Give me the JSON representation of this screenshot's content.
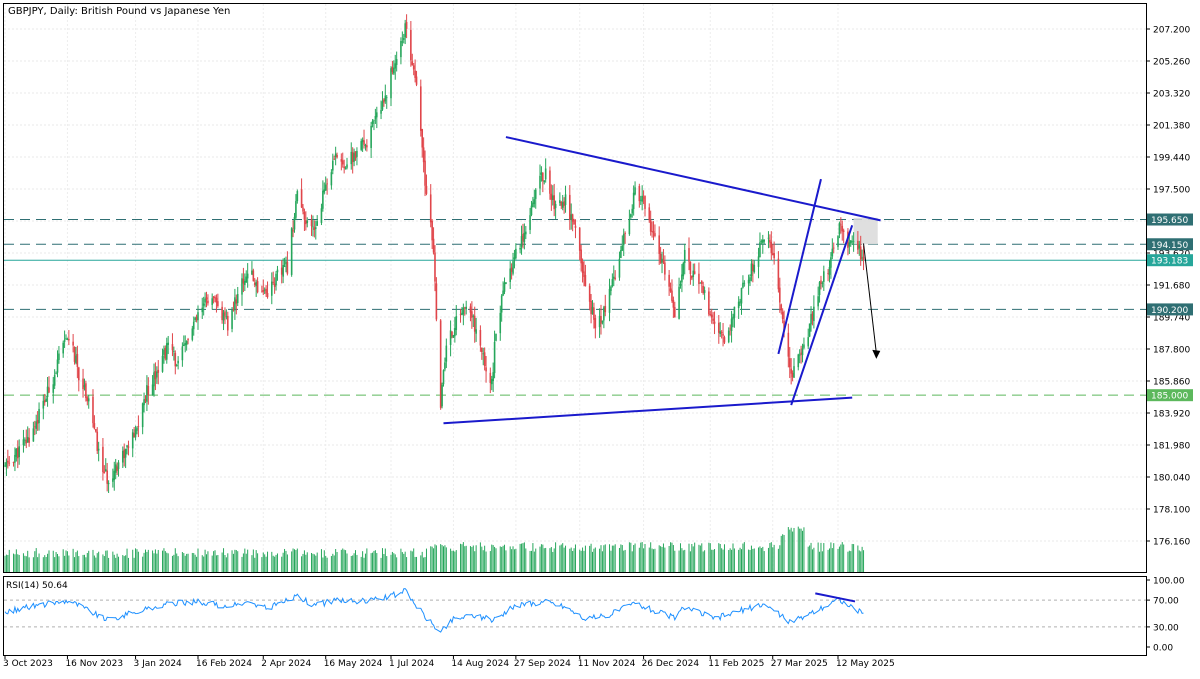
{
  "chart_data": {
    "type": "candlestick",
    "title": "GBPJPY, Daily:  British Pound vs Japanese Yen",
    "symbol": "GBPJPY",
    "timeframe": "Daily",
    "ylim": [
      174.2,
      209.1
    ],
    "y_ticks": [
      "207.200",
      "205.260",
      "203.320",
      "201.380",
      "199.440",
      "197.500",
      "195.560",
      "193.620",
      "191.680",
      "189.740",
      "187.800",
      "185.860",
      "183.920",
      "181.980",
      "180.040",
      "178.100",
      "176.160"
    ],
    "x_ticks": [
      {
        "label": "3 Oct 2023",
        "date": "2023-10-03"
      },
      {
        "label": "16 Nov 2023",
        "date": "2023-11-16"
      },
      {
        "label": "3 Jan 2024",
        "date": "2024-01-03"
      },
      {
        "label": "16 Feb 2024",
        "date": "2024-02-16"
      },
      {
        "label": "2 Apr 2024",
        "date": "2024-04-02"
      },
      {
        "label": "16 May 2024",
        "date": "2024-05-16"
      },
      {
        "label": "1 Jul 2024",
        "date": "2024-07-01"
      },
      {
        "label": "14 Aug 2024",
        "date": "2024-08-14"
      },
      {
        "label": "27 Sep 2024",
        "date": "2024-09-27"
      },
      {
        "label": "11 Nov 2024",
        "date": "2024-11-11"
      },
      {
        "label": "26 Dec 2024",
        "date": "2024-12-26"
      },
      {
        "label": "11 Feb 2025",
        "date": "2025-02-11"
      },
      {
        "label": "27 Mar 2025",
        "date": "2025-03-27"
      },
      {
        "label": "12 May 2025",
        "date": "2025-05-12"
      }
    ],
    "close_path": [
      [
        "2023-10-03",
        180.6
      ],
      [
        "2023-10-20",
        182.4
      ],
      [
        "2023-11-03",
        185.3
      ],
      [
        "2023-11-12",
        187.7
      ],
      [
        "2023-11-17",
        188.6
      ],
      [
        "2023-11-25",
        186.0
      ],
      [
        "2023-12-01",
        184.8
      ],
      [
        "2023-12-08",
        181.4
      ],
      [
        "2023-12-14",
        179.8
      ],
      [
        "2023-12-22",
        181.0
      ],
      [
        "2024-01-03",
        182.6
      ],
      [
        "2024-01-10",
        185.0
      ],
      [
        "2024-01-18",
        186.6
      ],
      [
        "2024-01-26",
        188.0
      ],
      [
        "2024-02-02",
        186.8
      ],
      [
        "2024-02-09",
        188.5
      ],
      [
        "2024-02-16",
        189.7
      ],
      [
        "2024-02-23",
        190.9
      ],
      [
        "2024-03-01",
        190.3
      ],
      [
        "2024-03-08",
        189.2
      ],
      [
        "2024-03-15",
        191.2
      ],
      [
        "2024-03-22",
        192.5
      ],
      [
        "2024-03-29",
        191.6
      ],
      [
        "2024-04-05",
        191.3
      ],
      [
        "2024-04-12",
        192.2
      ],
      [
        "2024-04-19",
        192.8
      ],
      [
        "2024-04-26",
        197.3
      ],
      [
        "2024-05-01",
        195.4
      ],
      [
        "2024-05-08",
        195.0
      ],
      [
        "2024-05-16",
        197.8
      ],
      [
        "2024-05-24",
        199.5
      ],
      [
        "2024-05-31",
        199.0
      ],
      [
        "2024-06-07",
        199.7
      ],
      [
        "2024-06-14",
        200.4
      ],
      [
        "2024-06-21",
        201.8
      ],
      [
        "2024-06-28",
        203.5
      ],
      [
        "2024-07-04",
        205.3
      ],
      [
        "2024-07-11",
        207.2
      ],
      [
        "2024-07-18",
        204.4
      ],
      [
        "2024-07-25",
        198.0
      ],
      [
        "2024-07-31",
        193.6
      ],
      [
        "2024-08-05",
        184.5
      ],
      [
        "2024-08-09",
        187.9
      ],
      [
        "2024-08-14",
        189.0
      ],
      [
        "2024-08-21",
        190.4
      ],
      [
        "2024-08-28",
        189.5
      ],
      [
        "2024-09-04",
        187.2
      ],
      [
        "2024-09-10",
        185.7
      ],
      [
        "2024-09-13",
        188.9
      ],
      [
        "2024-09-20",
        191.9
      ],
      [
        "2024-09-27",
        193.7
      ],
      [
        "2024-10-04",
        195.2
      ],
      [
        "2024-10-11",
        197.6
      ],
      [
        "2024-10-18",
        198.5
      ],
      [
        "2024-10-25",
        196.3
      ],
      [
        "2024-11-01",
        196.9
      ],
      [
        "2024-11-08",
        194.8
      ],
      [
        "2024-11-15",
        191.5
      ],
      [
        "2024-11-22",
        189.3
      ],
      [
        "2024-11-29",
        190.1
      ],
      [
        "2024-12-06",
        192.5
      ],
      [
        "2024-12-13",
        195.2
      ],
      [
        "2024-12-20",
        197.3
      ],
      [
        "2024-12-27",
        196.4
      ],
      [
        "2025-01-03",
        194.5
      ],
      [
        "2025-01-10",
        192.3
      ],
      [
        "2025-01-17",
        190.0
      ],
      [
        "2025-01-24",
        193.8
      ],
      [
        "2025-01-31",
        192.0
      ],
      [
        "2025-02-07",
        191.1
      ],
      [
        "2025-02-14",
        188.9
      ],
      [
        "2025-02-21",
        188.3
      ],
      [
        "2025-02-28",
        190.2
      ],
      [
        "2025-03-07",
        191.8
      ],
      [
        "2025-03-14",
        193.0
      ],
      [
        "2025-03-21",
        194.7
      ],
      [
        "2025-03-28",
        193.3
      ],
      [
        "2025-04-04",
        189.0
      ],
      [
        "2025-04-09",
        186.0
      ],
      [
        "2025-04-15",
        187.4
      ],
      [
        "2025-04-22",
        189.2
      ],
      [
        "2025-04-29",
        191.6
      ],
      [
        "2025-05-06",
        192.8
      ],
      [
        "2025-05-13",
        195.2
      ],
      [
        "2025-05-20",
        194.0
      ],
      [
        "2025-05-26",
        193.8
      ],
      [
        "2025-05-30",
        193.2
      ]
    ],
    "volume_range": [
      0,
      1
    ],
    "horizontal_levels": [
      {
        "value": 195.65,
        "label": "195.650",
        "style": "dashed",
        "color": "#2f6f73"
      },
      {
        "value": 194.15,
        "label": "194.150",
        "style": "dashed",
        "color": "#2f6f73"
      },
      {
        "value": 193.183,
        "label": "193.183",
        "style": "solid",
        "color": "#26a69a"
      },
      {
        "value": 190.2,
        "label": "190.200",
        "style": "dashed",
        "color": "#2f6f73"
      },
      {
        "value": 185.0,
        "label": "185.000",
        "style": "dashed",
        "color": "#5cb85c"
      }
    ],
    "colors": {
      "bull": "#26a65b",
      "bear": "#e0454a",
      "trendline": "#1a1acc",
      "level": "#2f6f73",
      "current": "#26a69a",
      "support": "#5cb85c",
      "rsi": "#1e90ff",
      "box": "#d9d9d9"
    },
    "trendlines": [
      {
        "name": "upper",
        "points": [
          [
            "2024-09-20",
            200.65
          ],
          [
            "2025-06-11",
            195.6
          ]
        ]
      },
      {
        "name": "lower",
        "points": [
          [
            "2024-08-07",
            183.3
          ],
          [
            "2025-05-22",
            184.85
          ]
        ]
      },
      {
        "name": "channel-lower",
        "points": [
          [
            "2025-04-09",
            184.4
          ],
          [
            "2025-05-22",
            195.3
          ]
        ]
      },
      {
        "name": "channel-upper",
        "points": [
          [
            "2025-03-31",
            187.5
          ],
          [
            "2025-04-30",
            198.1
          ]
        ]
      }
    ],
    "zone": {
      "from": "2025-05-23",
      "to": "2025-06-09",
      "low": 194.15,
      "high": 195.75
    },
    "forecast_arrow": {
      "from": [
        "2025-05-30",
        194.2
      ],
      "to": [
        "2025-06-08",
        187.2
      ]
    },
    "rsi": {
      "label": "RSI(14) 50.64",
      "ylim": [
        0,
        100
      ],
      "ticks": [
        "100.00",
        "70.00",
        "30.00",
        "0.00"
      ],
      "levels": [
        70,
        30
      ],
      "path": [
        [
          "2023-10-03",
          52
        ],
        [
          "2023-10-20",
          60
        ],
        [
          "2023-11-03",
          65
        ],
        [
          "2023-11-17",
          70
        ],
        [
          "2023-12-01",
          55
        ],
        [
          "2023-12-14",
          40
        ],
        [
          "2024-01-03",
          52
        ],
        [
          "2024-01-26",
          64
        ],
        [
          "2024-02-16",
          68
        ],
        [
          "2024-03-08",
          60
        ],
        [
          "2024-03-22",
          66
        ],
        [
          "2024-04-05",
          58
        ],
        [
          "2024-04-26",
          76
        ],
        [
          "2024-05-08",
          62
        ],
        [
          "2024-05-24",
          70
        ],
        [
          "2024-06-14",
          68
        ],
        [
          "2024-07-04",
          78
        ],
        [
          "2024-07-11",
          84
        ],
        [
          "2024-07-25",
          46
        ],
        [
          "2024-08-05",
          22
        ],
        [
          "2024-08-14",
          42
        ],
        [
          "2024-08-28",
          48
        ],
        [
          "2024-09-10",
          40
        ],
        [
          "2024-09-27",
          62
        ],
        [
          "2024-10-18",
          68
        ],
        [
          "2024-11-01",
          60
        ],
        [
          "2024-11-15",
          42
        ],
        [
          "2024-11-29",
          46
        ],
        [
          "2024-12-20",
          66
        ],
        [
          "2025-01-03",
          54
        ],
        [
          "2025-01-17",
          44
        ],
        [
          "2025-01-24",
          60
        ],
        [
          "2025-02-14",
          42
        ],
        [
          "2025-03-07",
          56
        ],
        [
          "2025-03-21",
          64
        ],
        [
          "2025-04-04",
          44
        ],
        [
          "2025-04-09",
          36
        ],
        [
          "2025-04-22",
          50
        ],
        [
          "2025-05-13",
          72
        ],
        [
          "2025-05-20",
          60
        ],
        [
          "2025-05-30",
          50.64
        ]
      ],
      "divergence_line": [
        [
          "2025-04-26",
          80
        ],
        [
          "2025-05-24",
          68
        ]
      ]
    }
  }
}
